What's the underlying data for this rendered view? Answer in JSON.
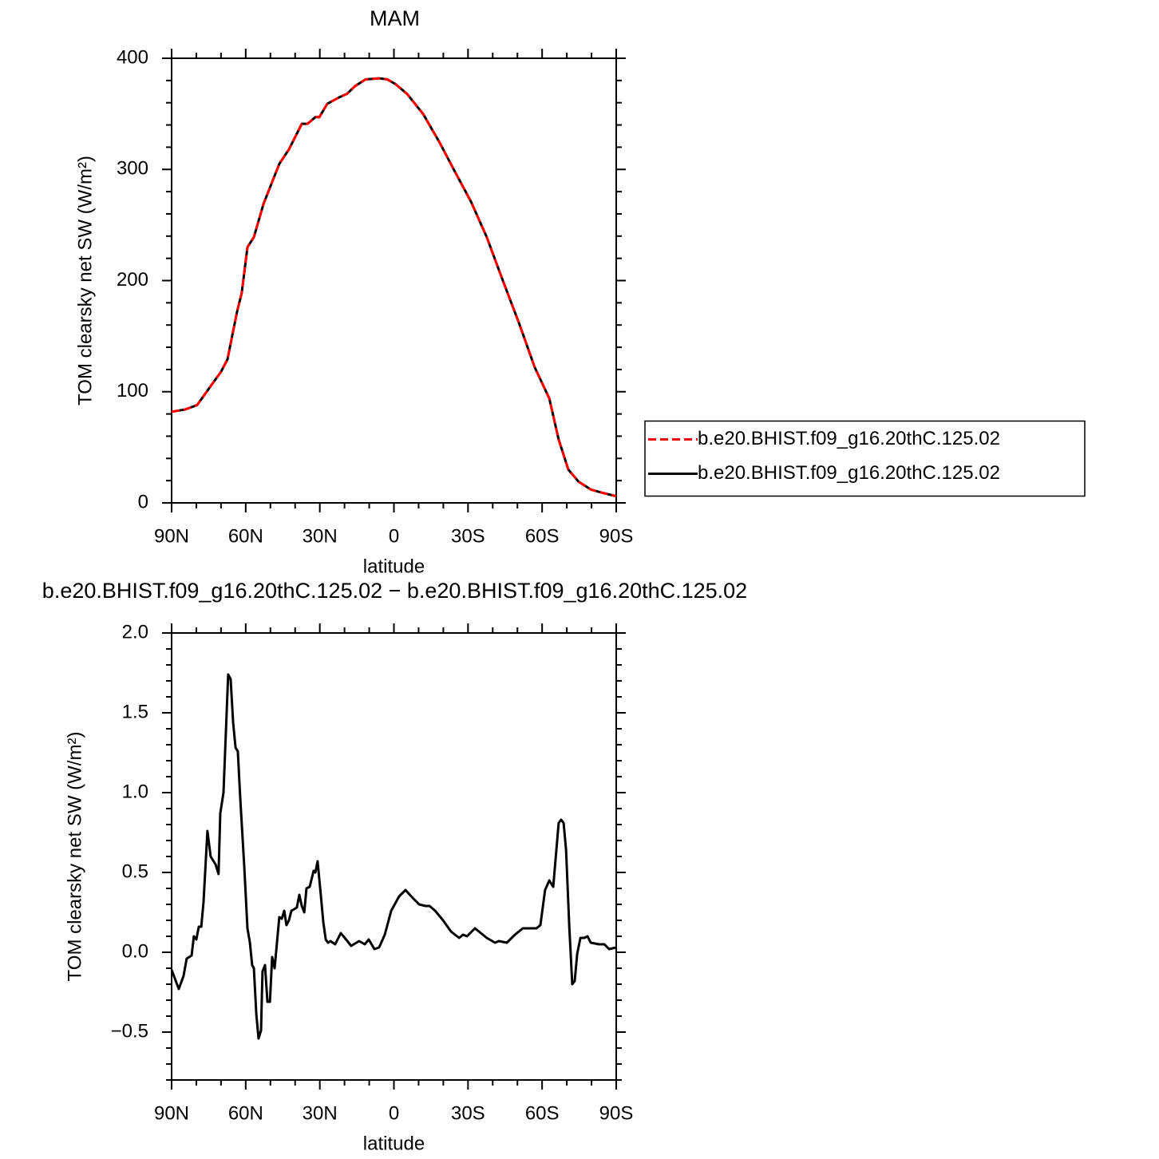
{
  "chart_data": [
    {
      "type": "line",
      "title": "MAM",
      "xlabel": "latitude",
      "ylabel": "TOM clearsky net SW (W/m²)",
      "x": [
        90,
        84.5,
        79.7,
        74.5,
        70,
        67.4,
        63.5,
        61.6,
        59.3,
        56.7,
        52.8,
        46.4,
        42.5,
        37.3,
        35,
        31.8,
        30.2,
        27,
        22,
        19,
        15.7,
        11.5,
        6,
        2.7,
        -0.5,
        -5.3,
        -11.8,
        -18.3,
        -24.7,
        -31.2,
        -37.6,
        -44.1,
        -50.6,
        -57,
        -62.9,
        -66.7,
        -70.6,
        -74.8,
        -79.7,
        -84.5,
        -90
      ],
      "series": [
        {
          "name": "b.e20.BHIST.f09_g16.20thC.125.02",
          "color": "#ff0000",
          "dashed": true,
          "values": [
            82,
            84,
            88,
            104,
            118,
            129,
            172,
            189,
            230,
            239,
            269,
            305,
            318,
            341,
            341,
            347,
            347,
            359,
            365,
            368,
            375,
            381,
            382,
            381,
            377,
            368,
            350,
            325,
            298,
            271,
            239,
            200,
            162,
            122,
            94,
            57,
            30,
            19,
            12,
            9,
            6
          ]
        },
        {
          "name": "b.e20.BHIST.f09_g16.20thC.125.02",
          "color": "#000000",
          "dashed": false,
          "values": [
            82,
            84,
            88,
            104,
            118,
            129,
            172,
            189,
            230,
            239,
            269,
            305,
            318,
            341,
            341,
            347,
            347,
            359,
            365,
            368,
            375,
            381,
            382,
            381,
            377,
            368,
            350,
            325,
            298,
            271,
            239,
            200,
            162,
            122,
            94,
            57,
            30,
            19,
            12,
            9,
            6
          ]
        }
      ],
      "xlim": [
        90,
        -90
      ],
      "ylim": [
        0,
        400
      ],
      "xticks": [
        {
          "value": 90,
          "label": "90N"
        },
        {
          "value": 60,
          "label": "60N"
        },
        {
          "value": 30,
          "label": "30N"
        },
        0,
        {
          "value": -30,
          "label": "30S"
        },
        {
          "value": -60,
          "label": "60S"
        },
        {
          "value": -90,
          "label": "90S"
        }
      ],
      "yticks": [
        0,
        100,
        200,
        300,
        400
      ],
      "legend": "right"
    },
    {
      "type": "line",
      "title": "b.e20.BHIST.f09_g16.20thC.125.02 − b.e20.BHIST.f09_g16.20thC.125.02",
      "xlabel": "latitude",
      "ylabel": "TOM clearsky net SW (W/m²)",
      "x": [
        90,
        87.1,
        85.2,
        83.9,
        81.9,
        81,
        80,
        79,
        78,
        77.1,
        75.5,
        74.2,
        72.2,
        71,
        70.3,
        69,
        67.1,
        66.1,
        65.1,
        64.1,
        63.2,
        62.2,
        60.6,
        59.3,
        58.3,
        57.4,
        56.7,
        55.7,
        54.8,
        53.8,
        53.2,
        52.2,
        51.2,
        50.2,
        49.3,
        48.3,
        46.4,
        45.4,
        44.4,
        43.5,
        42.5,
        41.5,
        39.3,
        38.3,
        37.3,
        36.3,
        35.4,
        34.1,
        32.5,
        31.8,
        30.9,
        29.6,
        28.6,
        27.6,
        26.7,
        25.7,
        23.8,
        21.5,
        19.9,
        17.3,
        14.1,
        11.8,
        10.2,
        7.9,
        6,
        3.7,
        1.1,
        -2.1,
        -4.7,
        -7,
        -10.2,
        -12.8,
        -14.4,
        -16.7,
        -19.9,
        -23.1,
        -26.4,
        -28,
        -29.6,
        -32.8,
        -37.6,
        -40.9,
        -42.5,
        -45.7,
        -49,
        -52.2,
        -57.7,
        -59.3,
        -61.2,
        -62.9,
        -64.5,
        -66.7,
        -67.7,
        -68.7,
        -69.7,
        -71,
        -72.2,
        -73.2,
        -74.2,
        -75.5,
        -77.1,
        -78.4,
        -79.7,
        -83,
        -85.2,
        -87.1,
        -90
      ],
      "series": [
        {
          "color": "#000000",
          "dashed": false,
          "values": [
            -0.11,
            -0.23,
            -0.15,
            -0.04,
            -0.02,
            0.1,
            0.08,
            0.16,
            0.16,
            0.31,
            0.76,
            0.6,
            0.55,
            0.49,
            0.87,
            1.0,
            1.74,
            1.71,
            1.44,
            1.28,
            1.26,
            0.96,
            0.54,
            0.15,
            0.06,
            -0.08,
            -0.1,
            -0.39,
            -0.54,
            -0.49,
            -0.12,
            -0.08,
            -0.31,
            -0.31,
            -0.03,
            -0.1,
            0.22,
            0.21,
            0.26,
            0.17,
            0.2,
            0.26,
            0.28,
            0.36,
            0.29,
            0.25,
            0.4,
            0.41,
            0.51,
            0.5,
            0.57,
            0.36,
            0.19,
            0.08,
            0.06,
            0.07,
            0.05,
            0.12,
            0.09,
            0.04,
            0.07,
            0.05,
            0.08,
            0.02,
            0.03,
            0.11,
            0.26,
            0.35,
            0.39,
            0.35,
            0.3,
            0.29,
            0.29,
            0.26,
            0.2,
            0.13,
            0.09,
            0.11,
            0.1,
            0.15,
            0.09,
            0.06,
            0.07,
            0.06,
            0.11,
            0.15,
            0.15,
            0.17,
            0.39,
            0.45,
            0.41,
            0.81,
            0.83,
            0.81,
            0.64,
            0.16,
            -0.2,
            -0.18,
            -0.01,
            0.09,
            0.09,
            0.1,
            0.06,
            0.05,
            0.05,
            0.02,
            0.03
          ]
        }
      ],
      "xlim": [
        90,
        -90
      ],
      "ylim": [
        -0.8,
        2
      ],
      "xticks": [
        {
          "value": 90,
          "label": "90N"
        },
        {
          "value": 60,
          "label": "60N"
        },
        {
          "value": 30,
          "label": "30N"
        },
        0,
        {
          "value": -30,
          "label": "30S"
        },
        {
          "value": -60,
          "label": "60S"
        },
        {
          "value": -90,
          "label": "90S"
        }
      ],
      "yticks": [
        {
          "value": 2,
          "label": "2.0"
        },
        1.5,
        {
          "value": 1,
          "label": "1.0"
        },
        0.5,
        {
          "value": 0,
          "label": "0.0"
        },
        {
          "value": -0.5,
          "label": "−0.5"
        }
      ]
    }
  ]
}
